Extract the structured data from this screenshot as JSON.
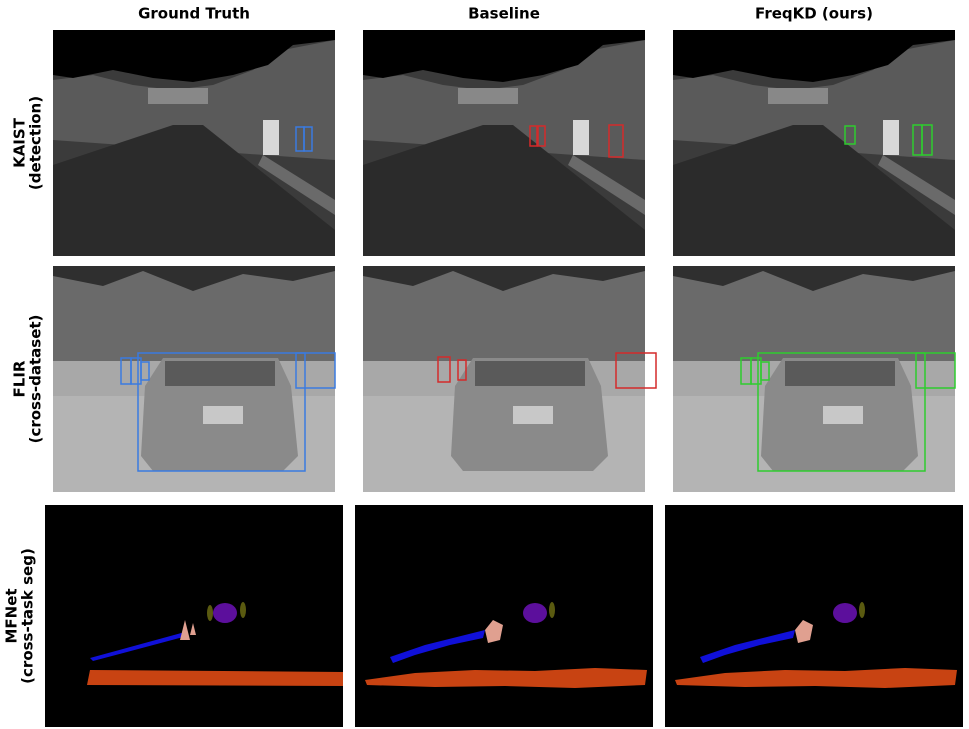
{
  "columns": [
    "Ground Truth",
    "Baseline",
    "FreqKD (ours)"
  ],
  "rows": [
    {
      "label": [
        "KAIST",
        "(detection)"
      ]
    },
    {
      "label": [
        "FLIR",
        "(cross-dataset)"
      ]
    },
    {
      "label": [
        "MFNet",
        "(cross-task seg)"
      ]
    }
  ]
}
